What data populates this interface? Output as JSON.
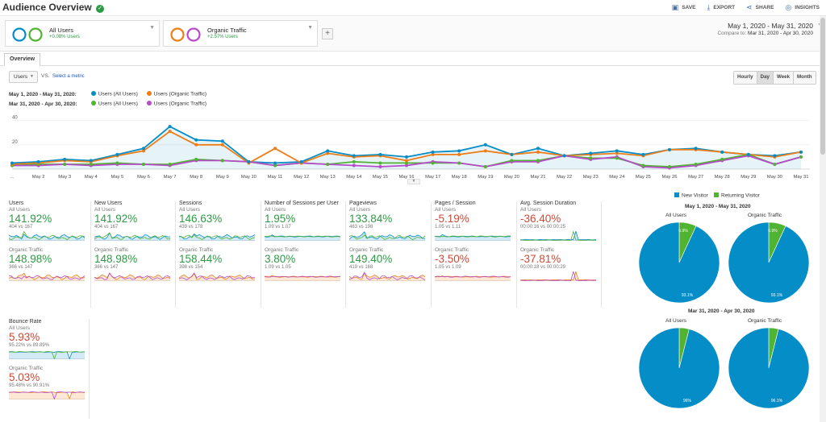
{
  "header": {
    "title": "Audience Overview",
    "actions": [
      {
        "label": "SAVE",
        "icon": "save-icon"
      },
      {
        "label": "EXPORT",
        "icon": "export-icon"
      },
      {
        "label": "SHARE",
        "icon": "share-icon"
      },
      {
        "label": "INSIGHTS",
        "icon": "insights-icon"
      }
    ]
  },
  "segments": [
    {
      "name": "All Users",
      "delta": "+0.08% Users"
    },
    {
      "name": "Organic Traffic",
      "delta": "+2.57% Users"
    }
  ],
  "add_segment": "+",
  "date_range": {
    "main": "May 1, 2020 - May 31, 2020",
    "compare_label": "Compare to:",
    "compare": "Mar 31, 2020 - Apr 30, 2020"
  },
  "tabs": [
    "Overview"
  ],
  "controls": {
    "metric": "Users",
    "vs": "VS.",
    "select_metric": "Select a metric",
    "granularity": [
      "Hourly",
      "Day",
      "Week",
      "Month"
    ],
    "active_granularity": "Day"
  },
  "legend": [
    {
      "range": "May 1, 2020 - May 31, 2020:",
      "items": [
        "Users (All Users)",
        "Users (Organic Traffic)"
      ],
      "colors": [
        "#058dc7",
        "#ed7e17"
      ]
    },
    {
      "range": "Mar 31, 2020 - Apr 30, 2020:",
      "items": [
        "Users (All Users)",
        "Users (Organic Traffic)"
      ],
      "colors": [
        "#50b432",
        "#b84bc9"
      ]
    }
  ],
  "chart_data": {
    "type": "line",
    "yticks": [
      40,
      20
    ],
    "ylim": [
      0,
      45
    ],
    "xticks": [
      "...",
      "May 2",
      "May 3",
      "May 4",
      "May 5",
      "May 6",
      "May 7",
      "May 8",
      "May 9",
      "May 10",
      "May 11",
      "May 12",
      "May 13",
      "May 14",
      "May 15",
      "May 16",
      "May 17",
      "May 18",
      "May 19",
      "May 20",
      "May 21",
      "May 22",
      "May 23",
      "May 24",
      "May 25",
      "May 26",
      "May 27",
      "May 28",
      "May 29",
      "May 30",
      "May 31"
    ],
    "series": [
      {
        "name": "Users (All Users)",
        "period": "May 1, 2020 - May 31, 2020",
        "color": "#058dc7",
        "values": [
          5,
          6,
          8,
          7,
          12,
          17,
          35,
          24,
          23,
          6,
          5,
          6,
          15,
          11,
          12,
          10,
          14,
          15,
          20,
          12,
          17,
          11,
          13,
          15,
          12,
          16,
          17,
          14,
          12,
          11,
          14
        ]
      },
      {
        "name": "Users (Organic Traffic)",
        "period": "May 1, 2020 - May 31, 2020",
        "color": "#ed7e17",
        "values": [
          4,
          5,
          7,
          6,
          11,
          15,
          31,
          20,
          20,
          5,
          17,
          5,
          13,
          10,
          11,
          7,
          12,
          12,
          15,
          12,
          14,
          11,
          12,
          13,
          11,
          16,
          16,
          14,
          12,
          10,
          14
        ]
      },
      {
        "name": "Users (All Users)",
        "period": "Mar 31, 2020 - Apr 30, 2020",
        "color": "#50b432",
        "values": [
          3,
          4,
          4,
          4,
          5,
          4,
          4,
          8,
          7,
          6,
          3,
          5,
          4,
          6,
          5,
          5,
          5,
          5,
          2,
          7,
          7,
          11,
          9,
          9,
          3,
          2,
          4,
          8,
          12,
          4,
          10
        ]
      },
      {
        "name": "Users (Organic Traffic)",
        "period": "Mar 31, 2020 - Apr 30, 2020",
        "color": "#b84bc9",
        "values": [
          3,
          3,
          4,
          3,
          4,
          4,
          3,
          7,
          7,
          6,
          3,
          5,
          4,
          3,
          2,
          3,
          6,
          5,
          2,
          6,
          6,
          11,
          8,
          10,
          2,
          1,
          3,
          7,
          11,
          4,
          10
        ]
      }
    ]
  },
  "scorecards": [
    {
      "title": "Users",
      "all_label": "All Users",
      "all_value": "141.92%",
      "all_cmp": "404 vs 167",
      "all_dir": "pos",
      "org_label": "Organic Traffic",
      "org_value": "148.98%",
      "org_cmp": "366 vs 147",
      "org_dir": "pos",
      "spark": "wave"
    },
    {
      "title": "New Users",
      "all_label": "All Users",
      "all_value": "141.92%",
      "all_cmp": "404 vs 167",
      "all_dir": "pos",
      "org_label": "Organic Traffic",
      "org_value": "148.98%",
      "org_cmp": "366 vs 147",
      "org_dir": "pos",
      "spark": "wave"
    },
    {
      "title": "Sessions",
      "all_label": "All Users",
      "all_value": "146.63%",
      "all_cmp": "439 vs 178",
      "all_dir": "pos",
      "org_label": "Organic Traffic",
      "org_value": "158.44%",
      "org_cmp": "398 vs 154",
      "org_dir": "pos",
      "spark": "wave"
    },
    {
      "title": "Number of Sessions per User",
      "all_label": "All Users",
      "all_value": "1.95%",
      "all_cmp": "1.09 vs 1.07",
      "all_dir": "pos",
      "org_label": "Organic Traffic",
      "org_value": "3.80%",
      "org_cmp": "1.09 vs 1.05",
      "org_dir": "pos",
      "spark": "flat"
    },
    {
      "title": "Pageviews",
      "all_label": "All Users",
      "all_value": "133.84%",
      "all_cmp": "463 vs 198",
      "all_dir": "pos",
      "org_label": "Organic Traffic",
      "org_value": "149.40%",
      "org_cmp": "419 vs 168",
      "org_dir": "pos",
      "spark": "wave"
    },
    {
      "title": "Pages / Session",
      "all_label": "All Users",
      "all_value": "-5.19%",
      "all_cmp": "1.05 vs 1.11",
      "all_dir": "neg",
      "org_label": "Organic Traffic",
      "org_value": "-3.50%",
      "org_cmp": "1.05 vs 1.09",
      "org_dir": "neg",
      "spark": "flat"
    },
    {
      "title": "Avg. Session Duration",
      "all_label": "All Users",
      "all_value": "-36.40%",
      "all_cmp": "00:00:16 vs 00:00:25",
      "all_dir": "neg",
      "org_label": "Organic Traffic",
      "org_value": "-37.81%",
      "org_cmp": "00:00:18 vs 00:00:29",
      "org_dir": "neg",
      "spark": "spike"
    },
    {
      "title": "Bounce Rate",
      "all_label": "All Users",
      "all_value": "5.93%",
      "all_cmp": "95.22% vs 89.89%",
      "all_dir": "neg",
      "org_label": "Organic Traffic",
      "org_value": "5.03%",
      "org_cmp": "95.48% vs 90.91%",
      "org_dir": "neg",
      "spark": "dip"
    }
  ],
  "pie_legend": [
    {
      "label": "New Visitor",
      "color": "#058dc7"
    },
    {
      "label": "Returning Visitor",
      "color": "#50b432"
    }
  ],
  "pie_groups": [
    {
      "period": "May 1, 2020 - May 31, 2020",
      "pies": [
        {
          "label": "All Users",
          "new_pct": 93.1,
          "returning_pct": 6.9,
          "new_text": "93.1%",
          "returning_text": "6.9%"
        },
        {
          "label": "Organic Traffic",
          "new_pct": 93.1,
          "returning_pct": 6.9,
          "new_text": "93.1%",
          "returning_text": "6.9%"
        }
      ]
    },
    {
      "period": "Mar 31, 2020 - Apr 30, 2020",
      "pies": [
        {
          "label": "All Users",
          "new_pct": 96,
          "returning_pct": 4,
          "new_text": "96%",
          "returning_text": ""
        },
        {
          "label": "Organic Traffic",
          "new_pct": 96.1,
          "returning_pct": 3.9,
          "new_text": "96.1%",
          "returning_text": ""
        }
      ]
    }
  ],
  "colors": {
    "positive": "#2e9a44",
    "negative": "#d14836",
    "link": "#1a56b8"
  }
}
